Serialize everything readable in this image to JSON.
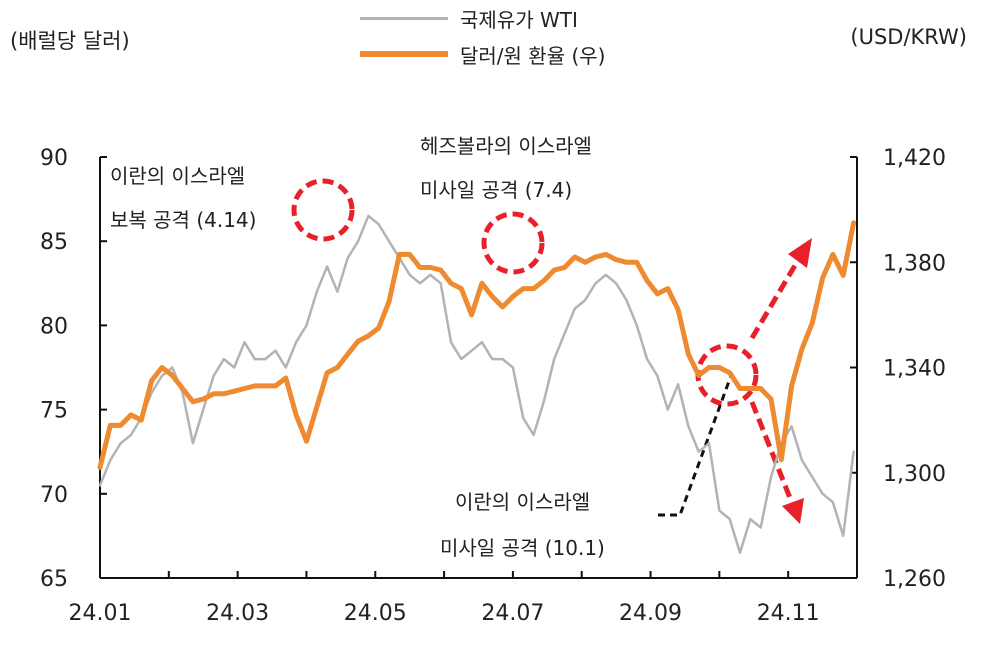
{
  "chart_data": {
    "type": "line",
    "left_axis_label": "(배럴당 달러)",
    "right_axis_label": "(USD/KRW)",
    "x_ticks": [
      "24.01",
      "24.03",
      "24.05",
      "24.07",
      "24.09",
      "24.11"
    ],
    "x_range": [
      0,
      11
    ],
    "y_left": {
      "ylim": [
        65,
        90
      ],
      "ticks": [
        "65",
        "70",
        "75",
        "80",
        "85",
        "90"
      ]
    },
    "y_right": {
      "ylim": [
        1260,
        1420
      ],
      "ticks": [
        "1,260",
        "1,300",
        "1,340",
        "1,380",
        "1,420"
      ]
    },
    "legend_position": "top-center",
    "series": [
      {
        "name": "국제유가 WTI",
        "axis": "left",
        "color": "#b3b3b3",
        "x": [
          0.0,
          0.15,
          0.3,
          0.45,
          0.6,
          0.75,
          0.9,
          1.05,
          1.2,
          1.35,
          1.5,
          1.65,
          1.8,
          1.95,
          2.1,
          2.25,
          2.4,
          2.55,
          2.7,
          2.85,
          3.0,
          3.15,
          3.3,
          3.45,
          3.6,
          3.75,
          3.9,
          4.05,
          4.2,
          4.35,
          4.5,
          4.65,
          4.8,
          4.95,
          5.1,
          5.25,
          5.4,
          5.55,
          5.7,
          5.85,
          6.0,
          6.15,
          6.3,
          6.45,
          6.6,
          6.75,
          6.9,
          7.05,
          7.2,
          7.35,
          7.5,
          7.65,
          7.8,
          7.95,
          8.1,
          8.25,
          8.4,
          8.55,
          8.7,
          8.85,
          9.0,
          9.15,
          9.3,
          9.45,
          9.6,
          9.75,
          9.9,
          10.05,
          10.2,
          10.35,
          10.5,
          10.65,
          10.8,
          10.95
        ],
        "values": [
          70.5,
          72.0,
          73.0,
          73.5,
          74.5,
          76.0,
          77.0,
          77.5,
          76.0,
          73.0,
          75.0,
          77.0,
          78.0,
          77.5,
          79.0,
          78.0,
          78.0,
          78.5,
          77.5,
          79.0,
          80.0,
          82.0,
          83.5,
          82.0,
          84.0,
          85.0,
          86.5,
          86.0,
          85.0,
          84.0,
          83.0,
          82.5,
          83.0,
          82.5,
          79.0,
          78.0,
          78.5,
          79.0,
          78.0,
          78.0,
          77.5,
          74.5,
          73.5,
          75.5,
          78.0,
          79.5,
          81.0,
          81.5,
          82.5,
          83.0,
          82.5,
          81.5,
          80.0,
          78.0,
          77.0,
          75.0,
          76.5,
          74.0,
          72.5,
          73.0,
          69.0,
          68.5,
          66.5,
          68.5,
          68.0,
          71.0,
          73.0,
          74.0,
          72.0,
          71.0,
          70.0,
          69.5,
          67.5,
          72.5
        ]
      },
      {
        "name": "달러/원 환율 (우)",
        "axis": "right",
        "color": "#ee8a30",
        "x": [
          0.0,
          0.15,
          0.3,
          0.45,
          0.6,
          0.75,
          0.9,
          1.05,
          1.2,
          1.35,
          1.5,
          1.65,
          1.8,
          1.95,
          2.1,
          2.25,
          2.4,
          2.55,
          2.7,
          2.85,
          3.0,
          3.15,
          3.3,
          3.45,
          3.6,
          3.75,
          3.9,
          4.05,
          4.2,
          4.35,
          4.5,
          4.65,
          4.8,
          4.95,
          5.1,
          5.25,
          5.4,
          5.55,
          5.7,
          5.85,
          6.0,
          6.15,
          6.3,
          6.45,
          6.6,
          6.75,
          6.9,
          7.05,
          7.2,
          7.35,
          7.5,
          7.65,
          7.8,
          7.95,
          8.1,
          8.25,
          8.4,
          8.55,
          8.7,
          8.85,
          9.0,
          9.15,
          9.3,
          9.45,
          9.6,
          9.75,
          9.9,
          10.05,
          10.2,
          10.35,
          10.5,
          10.65,
          10.8,
          10.95
        ],
        "values": [
          1302,
          1318,
          1318,
          1322,
          1320,
          1335,
          1340,
          1337,
          1332,
          1327,
          1328,
          1330,
          1330,
          1331,
          1332,
          1333,
          1333,
          1333,
          1336,
          1322,
          1312,
          1325,
          1338,
          1340,
          1345,
          1350,
          1352,
          1355,
          1365,
          1383,
          1383,
          1378,
          1378,
          1377,
          1372,
          1370,
          1360,
          1372,
          1367,
          1363,
          1367,
          1370,
          1370,
          1373,
          1377,
          1378,
          1382,
          1380,
          1382,
          1383,
          1381,
          1380,
          1380,
          1373,
          1368,
          1370,
          1362,
          1345,
          1337,
          1340,
          1340,
          1338,
          1332,
          1332,
          1332,
          1328,
          1305,
          1333,
          1347,
          1357,
          1374,
          1383,
          1375,
          1395
        ]
      }
    ],
    "annotations": [
      {
        "lines": [
          "이란의 이스라엘",
          "보복 공격 (4.14)"
        ]
      },
      {
        "lines": [
          "헤즈볼라의 이스라엘",
          "미사일 공격 (7.4)"
        ]
      },
      {
        "lines": [
          "이란의 이스라엘",
          "미사일 공격 (10.1)"
        ]
      }
    ]
  }
}
